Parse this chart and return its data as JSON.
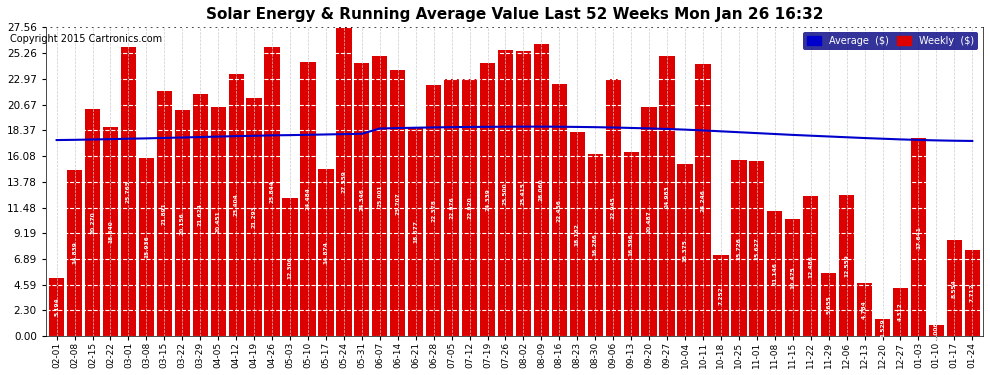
{
  "title": "Solar Energy & Running Average Value Last 52 Weeks Mon Jan 26 16:32",
  "copyright": "Copyright 2015 Cartronics.com",
  "background_color": "#ffffff",
  "bar_color": "#dd0000",
  "avg_line_color": "#0000cc",
  "yticks": [
    0.0,
    2.3,
    4.59,
    6.89,
    9.19,
    11.48,
    13.78,
    16.08,
    18.37,
    20.67,
    22.97,
    25.26,
    27.56
  ],
  "categories": [
    "02-01",
    "02-08",
    "02-15",
    "02-22",
    "03-01",
    "03-08",
    "03-15",
    "03-22",
    "03-29",
    "04-05",
    "04-12",
    "04-19",
    "04-26",
    "05-03",
    "05-10",
    "05-17",
    "05-24",
    "05-31",
    "06-07",
    "06-14",
    "06-21",
    "06-28",
    "07-05",
    "07-12",
    "07-19",
    "07-26",
    "08-02",
    "08-09",
    "08-16",
    "08-23",
    "08-30",
    "09-06",
    "09-13",
    "09-20",
    "09-27",
    "10-04",
    "10-11",
    "10-18",
    "10-25",
    "11-01",
    "11-08",
    "11-15",
    "11-22",
    "11-29",
    "12-06",
    "12-13",
    "12-20",
    "12-27",
    "01-03",
    "01-10",
    "01-17",
    "01-24"
  ],
  "weekly_values": [
    5.194,
    14.839,
    20.27,
    18.64,
    25.765,
    15.936,
    21.891,
    20.156,
    21.624,
    20.451,
    23.404,
    21.293,
    25.844,
    12.306,
    24.484,
    14.874,
    27.559,
    24.346,
    25.001,
    23.707,
    18.677,
    22.378,
    22.976,
    22.92,
    24.339,
    25.5,
    25.415,
    26.06,
    22.456,
    18.182,
    16.286,
    22.945,
    16.396,
    20.487,
    24.983,
    15.375,
    24.246,
    7.252,
    15.726,
    15.627,
    11.146,
    10.475,
    12.486,
    5.655,
    12.559,
    4.784,
    1.529,
    4.312,
    17.641,
    1.006,
    8.554,
    7.712
  ],
  "avg_values": [
    17.5,
    17.52,
    17.55,
    17.58,
    17.62,
    17.65,
    17.69,
    17.73,
    17.77,
    17.81,
    17.85,
    17.88,
    17.92,
    17.94,
    17.97,
    18.0,
    18.03,
    18.06,
    18.53,
    18.57,
    18.6,
    18.63,
    18.65,
    18.67,
    18.68,
    18.69,
    18.7,
    18.7,
    18.69,
    18.67,
    18.65,
    18.62,
    18.58,
    18.54,
    18.49,
    18.43,
    18.36,
    18.28,
    18.2,
    18.12,
    18.04,
    17.96,
    17.89,
    17.82,
    17.75,
    17.68,
    17.62,
    17.56,
    17.51,
    17.47,
    17.44,
    17.42
  ]
}
